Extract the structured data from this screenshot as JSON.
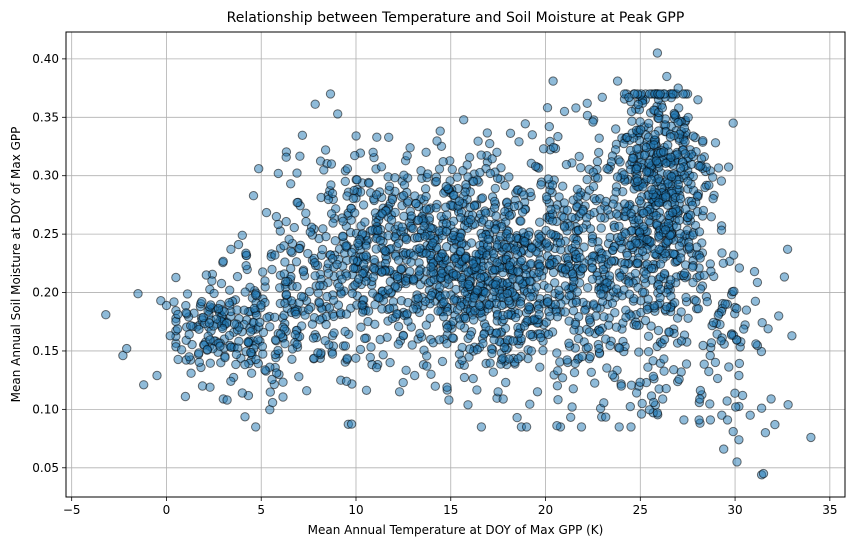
{
  "chart_data": {
    "type": "scatter",
    "title": "Relationship between Temperature and Soil Moisture at Peak GPP",
    "xlabel": "Mean Annual Temperature at DOY of Max GPP (K)",
    "ylabel": "Mean Annual Soil Moisture at DOY of Max GPP",
    "xlim": [
      -5.3,
      35.8
    ],
    "ylim": [
      0.025,
      0.423
    ],
    "xticks": [
      -5,
      0,
      5,
      10,
      15,
      20,
      25,
      30,
      35
    ],
    "yticks": [
      0.05,
      0.1,
      0.15,
      0.2,
      0.25,
      0.3,
      0.35,
      0.4
    ],
    "xtick_labels": [
      "−5",
      "0",
      "5",
      "10",
      "15",
      "20",
      "25",
      "30",
      "35"
    ],
    "ytick_labels": [
      "0.05",
      "0.10",
      "0.15",
      "0.20",
      "0.25",
      "0.30",
      "0.35",
      "0.40"
    ],
    "grid": true,
    "marker_color": "#1f77b4",
    "marker_edge_color": "#000000",
    "marker_alpha": 0.5,
    "approx_point_count": 2600,
    "points": [
      [
        -3.2,
        0.181
      ],
      [
        -2.3,
        0.146
      ],
      [
        -2.1,
        0.152
      ],
      [
        -1.5,
        0.199
      ],
      [
        -1.2,
        0.121
      ],
      [
        -0.5,
        0.129
      ],
      [
        -0.3,
        0.193
      ],
      [
        0.0,
        0.189
      ],
      [
        0.2,
        0.163
      ],
      [
        0.4,
        0.192
      ],
      [
        0.8,
        0.151
      ],
      [
        1.0,
        0.111
      ],
      [
        1.2,
        0.145
      ],
      [
        1.3,
        0.131
      ],
      [
        1.9,
        0.12
      ],
      [
        2.1,
        0.215
      ],
      [
        2.4,
        0.21
      ],
      [
        2.3,
        0.119
      ],
      [
        3.0,
        0.109
      ],
      [
        3.2,
        0.108
      ],
      [
        3.4,
        0.237
      ],
      [
        3.8,
        0.241
      ],
      [
        4.0,
        0.249
      ],
      [
        4.2,
        0.223
      ],
      [
        4.0,
        0.114
      ],
      [
        5.2,
        0.21
      ],
      [
        5.8,
        0.265
      ],
      [
        5.9,
        0.302
      ],
      [
        6.2,
        0.24
      ],
      [
        6.9,
        0.277
      ],
      [
        7.4,
        0.116
      ],
      [
        8.3,
        0.305
      ],
      [
        8.7,
        0.31
      ],
      [
        9.2,
        0.125
      ],
      [
        9.5,
        0.124
      ],
      [
        10.4,
        0.275
      ],
      [
        10.9,
        0.32
      ],
      [
        11.1,
        0.333
      ],
      [
        11.8,
        0.14
      ],
      [
        12.7,
        0.317
      ],
      [
        12.3,
        0.115
      ],
      [
        13.1,
        0.129
      ],
      [
        13.7,
        0.32
      ],
      [
        14.6,
        0.312
      ],
      [
        14.8,
        0.119
      ],
      [
        14.9,
        0.108
      ],
      [
        16.2,
        0.295
      ],
      [
        17.5,
        0.115
      ],
      [
        17.9,
        0.123
      ],
      [
        18.5,
        0.093
      ],
      [
        18.6,
        0.329
      ],
      [
        19.0,
        0.085
      ],
      [
        19.3,
        0.335
      ],
      [
        19.9,
        0.323
      ],
      [
        20.2,
        0.342
      ],
      [
        20.4,
        0.381
      ],
      [
        20.6,
        0.086
      ],
      [
        21.0,
        0.355
      ],
      [
        21.4,
        0.102
      ],
      [
        21.6,
        0.358
      ],
      [
        22.2,
        0.362
      ],
      [
        22.5,
        0.346
      ],
      [
        23.8,
        0.381
      ],
      [
        24.0,
        0.12
      ],
      [
        24.4,
        0.367
      ],
      [
        25.1,
        0.105
      ],
      [
        25.7,
        0.106
      ],
      [
        25.9,
        0.097
      ],
      [
        25.9,
        0.405
      ],
      [
        26.4,
        0.385
      ],
      [
        27.0,
        0.375
      ],
      [
        27.3,
        0.091
      ],
      [
        28.1,
        0.091
      ],
      [
        28.3,
        0.33
      ],
      [
        28.7,
        0.091
      ],
      [
        29.3,
        0.095
      ],
      [
        29.4,
        0.066
      ],
      [
        29.6,
        0.091
      ],
      [
        29.9,
        0.081
      ],
      [
        29.9,
        0.345
      ],
      [
        30.1,
        0.055
      ],
      [
        30.2,
        0.129
      ],
      [
        30.2,
        0.074
      ],
      [
        30.4,
        0.112
      ],
      [
        30.6,
        0.185
      ],
      [
        30.8,
        0.095
      ],
      [
        31.1,
        0.156
      ],
      [
        31.4,
        0.101
      ],
      [
        31.4,
        0.044
      ],
      [
        31.5,
        0.045
      ],
      [
        31.6,
        0.08
      ],
      [
        31.9,
        0.109
      ],
      [
        32.1,
        0.087
      ],
      [
        32.3,
        0.18
      ],
      [
        32.8,
        0.104
      ],
      [
        33.0,
        0.163
      ],
      [
        34.0,
        0.076
      ]
    ],
    "clusters": [
      {
        "cx": 3.0,
        "cy": 0.17,
        "sx": 1.6,
        "sy": 0.022,
        "n": 160
      },
      {
        "cx": 6.8,
        "cy": 0.185,
        "sx": 1.8,
        "sy": 0.04,
        "n": 160
      },
      {
        "cx": 10.0,
        "cy": 0.235,
        "sx": 2.0,
        "sy": 0.045,
        "n": 250
      },
      {
        "cx": 14.8,
        "cy": 0.235,
        "sx": 2.4,
        "sy": 0.04,
        "n": 520
      },
      {
        "cx": 17.6,
        "cy": 0.205,
        "sx": 2.0,
        "sy": 0.042,
        "n": 380
      },
      {
        "cx": 21.3,
        "cy": 0.23,
        "sx": 2.0,
        "sy": 0.05,
        "n": 280
      },
      {
        "cx": 26.0,
        "cy": 0.285,
        "sx": 1.4,
        "sy": 0.05,
        "n": 560
      },
      {
        "cx": 24.8,
        "cy": 0.19,
        "sx": 2.2,
        "sy": 0.05,
        "n": 200
      },
      {
        "cx": 29.2,
        "cy": 0.175,
        "sx": 1.5,
        "sy": 0.04,
        "n": 70
      }
    ]
  }
}
